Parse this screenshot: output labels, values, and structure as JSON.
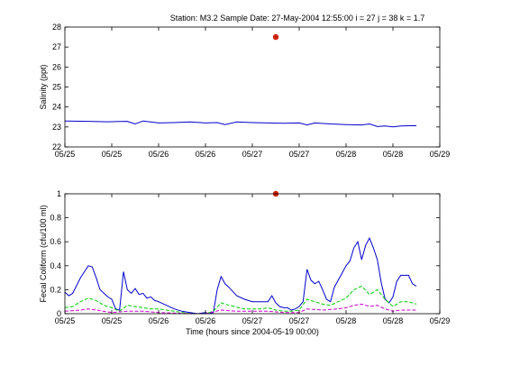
{
  "figure": {
    "title": "Station: M3.2  Sample Date: 27-May-2004 12:55:00   i = 27 j = 38 k = 1.7",
    "colors": {
      "axis": "#000000",
      "line_primary": "#0000cc",
      "line_green": "#00cc00",
      "line_magenta": "#cc00cc",
      "marker": "#cc2200"
    }
  },
  "chart_data": [
    {
      "type": "line",
      "title": "Station: M3.2  Sample Date: 27-May-2004 12:55:00   i = 27 j = 38 k = 1.7",
      "xlabel": "",
      "ylabel": "Salinity (ppt)",
      "x_unit": "hours since 2004-05-19 00:00",
      "xlim": [
        144,
        240
      ],
      "ylim": [
        22,
        28
      ],
      "xticks": [
        144,
        156,
        168,
        180,
        192,
        204,
        216,
        228,
        240
      ],
      "xticklabels": [
        "05/25",
        "05/25",
        "05/26",
        "05/26",
        "05/27",
        "05/27",
        "05/28",
        "05/28",
        "05/29"
      ],
      "yticks": [
        22,
        23,
        24,
        25,
        26,
        27,
        28
      ],
      "yticklabels": [
        "22",
        "23",
        "24",
        "25",
        "26",
        "27",
        "28"
      ],
      "grid": false,
      "legend": "none",
      "series": [
        {
          "color": "#0000cc",
          "x": [
            144,
            150,
            155,
            160,
            162,
            164,
            168,
            172,
            176,
            180,
            183,
            185,
            188,
            192,
            196,
            200,
            204,
            206,
            208,
            212,
            216,
            220,
            222,
            224,
            226,
            228,
            230,
            232,
            234
          ],
          "y": [
            23.3,
            23.28,
            23.26,
            23.28,
            23.15,
            23.3,
            23.2,
            23.22,
            23.25,
            23.2,
            23.22,
            23.12,
            23.25,
            23.22,
            23.2,
            23.18,
            23.2,
            23.1,
            23.2,
            23.15,
            23.12,
            23.1,
            23.15,
            23.02,
            23.05,
            23.0,
            23.05,
            23.06,
            23.06
          ]
        }
      ],
      "markers": [
        {
          "x": 198,
          "y": 27.5,
          "color": "#cc2200"
        }
      ]
    },
    {
      "type": "line",
      "title": "",
      "xlabel": "Time (hours since 2004-05-19 00:00)",
      "ylabel": "Fecal Coliform (cfu/100 ml)",
      "xlim": [
        144,
        240
      ],
      "ylim": [
        0,
        1
      ],
      "xticks": [
        144,
        156,
        168,
        180,
        192,
        204,
        216,
        228,
        240
      ],
      "xticklabels": [
        "05/25",
        "05/25",
        "05/26",
        "05/26",
        "05/27",
        "05/27",
        "05/28",
        "05/28",
        "05/29"
      ],
      "yticks": [
        0,
        0.2,
        0.4,
        0.6,
        0.8,
        1
      ],
      "yticklabels": [
        "0",
        "0.2",
        "0.4",
        "0.6",
        "0.8",
        "1"
      ],
      "grid": false,
      "legend": "none",
      "series": [
        {
          "color": "#0000cc",
          "dash": "solid",
          "x": [
            144,
            145,
            146,
            148,
            150,
            151,
            152,
            153,
            155,
            156,
            157,
            158,
            159,
            160,
            161,
            162,
            163,
            164,
            165,
            166,
            167,
            168,
            170,
            172,
            174,
            176,
            178,
            180,
            181,
            182,
            183,
            184,
            185,
            186,
            188,
            190,
            192,
            193,
            194,
            195,
            196,
            197,
            198,
            199,
            200,
            201,
            202,
            203,
            204,
            205,
            206,
            207,
            208,
            209,
            210,
            211,
            212,
            213,
            214,
            215,
            216,
            217,
            218,
            219,
            220,
            221,
            222,
            223,
            224,
            225,
            226,
            227,
            228,
            229,
            230,
            232,
            233,
            234
          ],
          "y": [
            0.18,
            0.15,
            0.17,
            0.3,
            0.4,
            0.39,
            0.3,
            0.2,
            0.14,
            0.12,
            0.04,
            0.03,
            0.35,
            0.2,
            0.17,
            0.21,
            0.16,
            0.17,
            0.13,
            0.14,
            0.11,
            0.1,
            0.07,
            0.04,
            0.02,
            0.01,
            0.0,
            0.01,
            0.0,
            0.01,
            0.2,
            0.31,
            0.25,
            0.22,
            0.15,
            0.12,
            0.1,
            0.1,
            0.1,
            0.1,
            0.1,
            0.15,
            0.09,
            0.06,
            0.05,
            0.05,
            0.03,
            0.04,
            0.06,
            0.1,
            0.37,
            0.28,
            0.25,
            0.27,
            0.2,
            0.12,
            0.1,
            0.22,
            0.28,
            0.34,
            0.4,
            0.44,
            0.55,
            0.6,
            0.45,
            0.57,
            0.63,
            0.55,
            0.45,
            0.26,
            0.12,
            0.09,
            0.14,
            0.27,
            0.32,
            0.32,
            0.25,
            0.23
          ]
        },
        {
          "color": "#00cc00",
          "dash": "dashed",
          "x": [
            144,
            146,
            148,
            150,
            152,
            154,
            156,
            158,
            160,
            162,
            164,
            166,
            168,
            172,
            176,
            180,
            182,
            184,
            186,
            190,
            194,
            196,
            198,
            200,
            202,
            204,
            206,
            208,
            210,
            212,
            214,
            216,
            218,
            220,
            222,
            224,
            226,
            228,
            230,
            232,
            234
          ],
          "y": [
            0.05,
            0.06,
            0.1,
            0.13,
            0.11,
            0.07,
            0.05,
            0.02,
            0.07,
            0.06,
            0.05,
            0.04,
            0.04,
            0.02,
            0.0,
            0.0,
            0.02,
            0.09,
            0.07,
            0.04,
            0.04,
            0.05,
            0.03,
            0.02,
            0.02,
            0.03,
            0.12,
            0.1,
            0.08,
            0.07,
            0.1,
            0.13,
            0.2,
            0.23,
            0.16,
            0.2,
            0.12,
            0.06,
            0.1,
            0.1,
            0.08
          ]
        },
        {
          "color": "#cc00cc",
          "dash": "dashed",
          "x": [
            144,
            148,
            150,
            152,
            156,
            160,
            164,
            168,
            176,
            180,
            184,
            188,
            192,
            196,
            200,
            204,
            206,
            210,
            214,
            216,
            218,
            220,
            222,
            224,
            226,
            228,
            230,
            234
          ],
          "y": [
            0.02,
            0.03,
            0.04,
            0.03,
            0.01,
            0.02,
            0.02,
            0.01,
            0.0,
            0.0,
            0.03,
            0.02,
            0.02,
            0.02,
            0.01,
            0.01,
            0.04,
            0.03,
            0.04,
            0.05,
            0.07,
            0.08,
            0.06,
            0.07,
            0.04,
            0.02,
            0.03,
            0.03
          ]
        }
      ],
      "markers": [
        {
          "x": 198,
          "y": 1.0,
          "color": "#cc2200"
        }
      ]
    }
  ]
}
